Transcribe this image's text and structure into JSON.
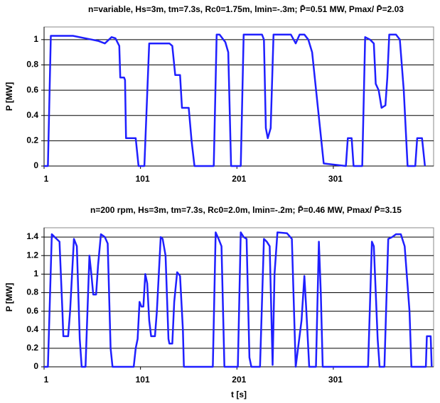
{
  "chart_data": [
    {
      "type": "line",
      "title": "n=variable, Hs=3m, tm=7.3s, Rc0=1.75m, lmin=-.3m; P̄=0.51 MW, Pmax/ P̄=2.03",
      "y_label": "P [MW]",
      "xlim": [
        1,
        405
      ],
      "xticks": [
        1,
        101,
        201,
        301
      ],
      "ylim": [
        0,
        1.1
      ],
      "yticks": [
        0,
        0.2,
        0.4,
        0.6,
        0.8,
        1
      ],
      "grid": true,
      "series": [
        {
          "name": "P",
          "color": "#1f1fff",
          "x": [
            1,
            5,
            8,
            31,
            57,
            64,
            71,
            75,
            79,
            80,
            84,
            85,
            86,
            96,
            99,
            105,
            110,
            131,
            134,
            137,
            142,
            144,
            151,
            154,
            157,
            177,
            180,
            183,
            189,
            192,
            195,
            205,
            208,
            227,
            229,
            231,
            233,
            236,
            239,
            257,
            262,
            266,
            271,
            275,
            279,
            291,
            314,
            316,
            320,
            322,
            331,
            334,
            339,
            343,
            345,
            348,
            351,
            355,
            357,
            359,
            366,
            370,
            374,
            378,
            386,
            388,
            393,
            396
          ],
          "values": [
            0,
            0,
            1.03,
            1.03,
            0.99,
            0.97,
            1.02,
            1.01,
            0.95,
            0.7,
            0.7,
            0.68,
            0.22,
            0.22,
            0,
            0,
            0.97,
            0.97,
            0.95,
            0.72,
            0.72,
            0.46,
            0.46,
            0.2,
            0,
            0,
            1.04,
            1.04,
            0.98,
            0.9,
            0,
            0,
            1.04,
            1.04,
            1.0,
            0.3,
            0.22,
            0.3,
            1.04,
            1.04,
            0.97,
            1.04,
            1.04,
            1.0,
            0.9,
            0.02,
            0,
            0.22,
            0.22,
            0,
            0,
            1.02,
            1.0,
            0.97,
            0.65,
            0.6,
            0.46,
            0.48,
            0.7,
            1.04,
            1.04,
            1.0,
            0.6,
            0,
            0,
            0.22,
            0.22,
            0
          ]
        }
      ]
    },
    {
      "type": "line",
      "title": "n=200 rpm, Hs=3m, tm=7.3s, Rc0=2.0m, lmin=-.2m; P̄=0.46 MW, Pmax/ P̄=3.15",
      "y_label": "P [MW]",
      "x_label": "t [s]",
      "xlim": [
        1,
        405
      ],
      "xticks": [
        1,
        101,
        201,
        301
      ],
      "ylim": [
        0,
        1.5
      ],
      "yticks": [
        0,
        0.2,
        0.4,
        0.6,
        0.8,
        1,
        1.2,
        1.4
      ],
      "grid": true,
      "series": [
        {
          "name": "P",
          "color": "#1f1fff",
          "x": [
            1,
            5,
            9,
            12,
            17,
            20,
            21,
            26,
            28,
            32,
            35,
            38,
            40,
            44,
            48,
            50,
            52,
            55,
            57,
            60,
            64,
            67,
            70,
            72,
            94,
            96,
            98,
            100,
            102,
            104,
            106,
            108,
            110,
            112,
            116,
            118,
            122,
            124,
            127,
            130,
            131,
            134,
            136,
            139,
            142,
            145,
            146,
            176,
            179,
            182,
            185,
            188,
            202,
            205,
            208,
            211,
            214,
            216,
            225,
            229,
            232,
            235,
            238,
            240,
            243,
            253,
            258,
            262,
            268,
            271,
            273,
            276,
            283,
            286,
            288,
            290,
            337,
            341,
            343,
            347,
            349,
            354,
            358,
            362,
            366,
            371,
            375,
            380,
            382,
            397,
            398,
            402,
            403
          ],
          "values": [
            0,
            0,
            1.43,
            1.4,
            1.35,
            0.6,
            0.33,
            0.33,
            0.6,
            1.38,
            1.3,
            0.3,
            0,
            0,
            1.2,
            1.0,
            0.78,
            0.78,
            1.1,
            1.43,
            1.4,
            1.33,
            0.2,
            0,
            0,
            0.2,
            0.3,
            0.7,
            0.65,
            0.65,
            1.0,
            0.9,
            0.5,
            0.33,
            0.33,
            0.6,
            1.4,
            1.38,
            1.2,
            0.3,
            0.25,
            0.25,
            0.7,
            1.02,
            0.98,
            0.4,
            0,
            0,
            1.45,
            1.38,
            1.3,
            0,
            0,
            1.45,
            1.4,
            1.38,
            0.1,
            0,
            0,
            1.38,
            1.35,
            1.3,
            0.02,
            1.0,
            1.45,
            1.44,
            1.38,
            0,
            0.5,
            0.98,
            0.6,
            0,
            0,
            1.35,
            0.8,
            0,
            0,
            1.35,
            1.3,
            0.3,
            0,
            0,
            1.38,
            1.4,
            1.43,
            1.43,
            1.3,
            0.6,
            0,
            0,
            0.33,
            0.33,
            0
          ]
        }
      ]
    }
  ]
}
